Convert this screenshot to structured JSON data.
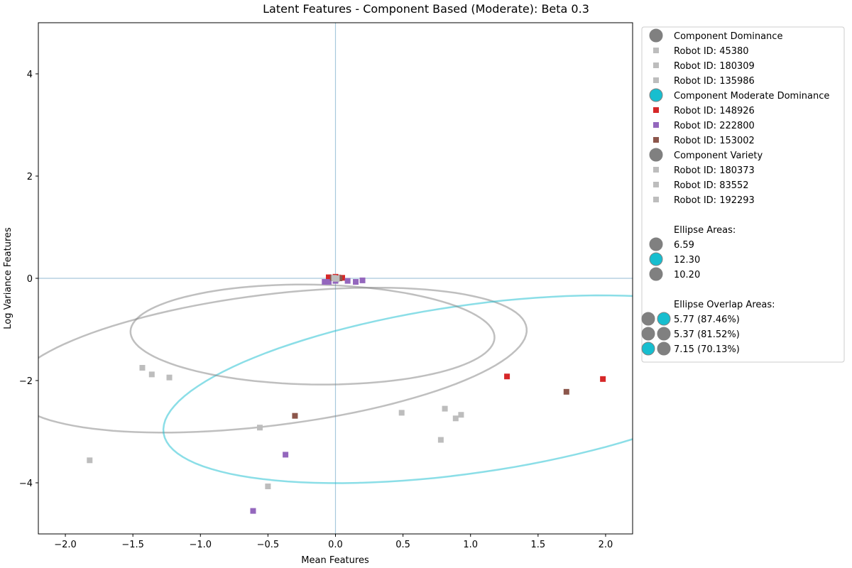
{
  "chart_data": {
    "type": "scatter",
    "title": "Latent Features - Component Based (Moderate): Beta 0.3",
    "xlabel": "Mean Features",
    "ylabel": "Log Variance Features",
    "xlim": [
      -2.2,
      2.2
    ],
    "ylim": [
      -5.0,
      5.0
    ],
    "xticks": [
      "-2.0",
      "-1.5",
      "-1.0",
      "-0.5",
      "0.0",
      "0.5",
      "1.0",
      "1.5",
      "2.0"
    ],
    "yticks": [
      "-4",
      "-2",
      "0",
      "2",
      "4"
    ],
    "grid": false,
    "reference_lines": {
      "x": 0,
      "y": 0,
      "color": "#a6c8dc"
    },
    "legend_placement": "outside right",
    "groups": [
      {
        "name": "Component Dominance",
        "color": "#808080",
        "ellipse": {
          "center": [
            -0.49,
            -1.6
          ],
          "width": 4.1,
          "height": 2.4,
          "angle_deg": 27
        },
        "series": [
          {
            "name": "Robot ID: 45380",
            "color": "#bdbdbd",
            "points": [
              [
                -1.43,
                -1.75
              ],
              [
                -1.36,
                -1.88
              ],
              [
                -1.23,
                -1.94
              ],
              [
                -1.82,
                -3.56
              ],
              [
                -0.56,
                -2.92
              ],
              [
                -0.5,
                -4.07
              ],
              [
                -0.02,
                0.0
              ],
              [
                0.02,
                0.02
              ]
            ]
          },
          {
            "name": "Robot ID: 180309",
            "color": "#bdbdbd",
            "points": [
              [
                0.49,
                -2.63
              ],
              [
                0.81,
                -2.55
              ],
              [
                0.89,
                -2.74
              ],
              [
                0.93,
                -2.67
              ],
              [
                0.78,
                -3.16
              ],
              [
                0.0,
                0.01
              ]
            ]
          },
          {
            "name": "Robot ID: 135986",
            "color": "#bdbdbd",
            "points": [
              [
                0.01,
                -0.02
              ]
            ]
          }
        ]
      },
      {
        "name": "Component Moderate Dominance",
        "color": "#17becf",
        "ellipse": {
          "center": [
            0.99,
            -2.17
          ],
          "width": 5.0,
          "height": 3.0,
          "angle_deg": 32
        },
        "series": [
          {
            "name": "Robot ID: 148926",
            "color": "#d62728",
            "points": [
              [
                1.27,
                -1.92
              ],
              [
                1.98,
                -1.97
              ],
              [
                -0.05,
                0.02
              ],
              [
                0.0,
                0.03
              ],
              [
                0.05,
                0.01
              ]
            ]
          },
          {
            "name": "Robot ID: 222800",
            "color": "#9467bd",
            "points": [
              [
                -0.37,
                -3.45
              ],
              [
                -0.61,
                -4.55
              ],
              [
                -0.08,
                -0.07
              ],
              [
                -0.05,
                -0.07
              ],
              [
                0.09,
                -0.05
              ],
              [
                0.15,
                -0.07
              ],
              [
                0.2,
                -0.04
              ],
              [
                0.0,
                -0.05
              ]
            ]
          },
          {
            "name": "Robot ID: 153002",
            "color": "#8c564b",
            "points": [
              [
                -0.3,
                -2.69
              ],
              [
                1.71,
                -2.22
              ],
              [
                -0.02,
                0.01
              ],
              [
                0.0,
                0.0
              ],
              [
                0.03,
                0.0
              ]
            ]
          }
        ]
      },
      {
        "name": "Component Variety",
        "color": "#808080",
        "ellipse": {
          "center": [
            -0.17,
            -1.1
          ],
          "width": 2.7,
          "height": 1.95,
          "angle_deg": -5
        },
        "series": [
          {
            "name": "Robot ID: 180373",
            "color": "#bdbdbd",
            "points": [
              [
                0.01,
                0.0
              ]
            ]
          },
          {
            "name": "Robot ID: 83552",
            "color": "#bdbdbd",
            "points": [
              [
                -0.01,
                0.01
              ]
            ]
          },
          {
            "name": "Robot ID: 192293",
            "color": "#bdbdbd",
            "points": [
              [
                0.0,
                -0.01
              ]
            ]
          }
        ]
      }
    ],
    "ellipse_areas_title": "Ellipse Areas:",
    "ellipse_areas": [
      {
        "label": "6.59",
        "color": "#808080"
      },
      {
        "label": "12.30",
        "color": "#17becf"
      },
      {
        "label": "10.20",
        "color": "#808080"
      }
    ],
    "overlap_title": "Ellipse Overlap Areas:",
    "overlaps": [
      {
        "label": "5.77 (87.46%)",
        "colors": [
          "#808080",
          "#17becf"
        ]
      },
      {
        "label": "5.37 (81.52%)",
        "colors": [
          "#808080",
          "#808080"
        ]
      },
      {
        "label": "7.15 (70.13%)",
        "colors": [
          "#17becf",
          "#808080"
        ]
      }
    ]
  }
}
